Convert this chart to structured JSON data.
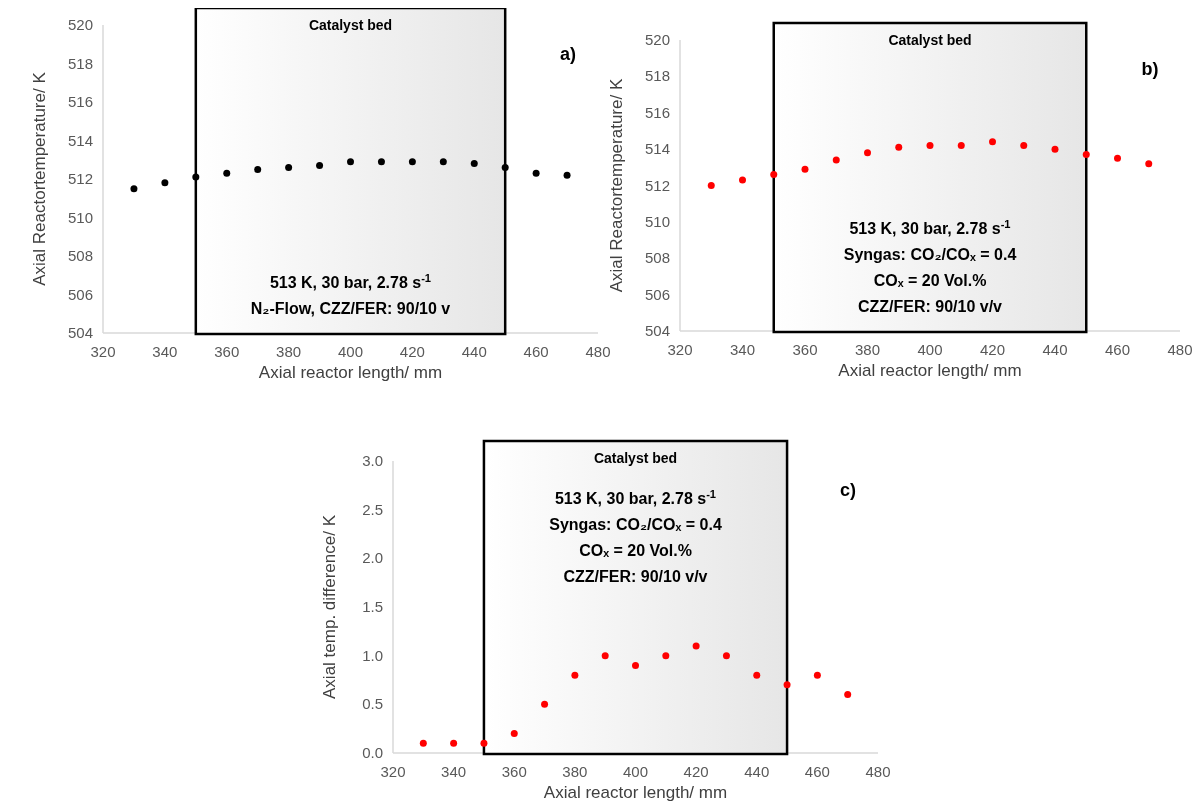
{
  "chart_data": [
    {
      "type": "scatter",
      "xlabel": "Axial reactor length/ mm",
      "ylabel": "Axial Reactortemperature/ K",
      "x": [
        330,
        340,
        350,
        360,
        370,
        380,
        390,
        400,
        410,
        420,
        430,
        440,
        450,
        460,
        470
      ],
      "series": [
        {
          "color": "#000000",
          "values": [
            511.5,
            511.8,
            512.1,
            512.3,
            512.5,
            512.6,
            512.7,
            512.9,
            512.9,
            512.9,
            512.9,
            512.8,
            512.6,
            512.3,
            512.2
          ]
        }
      ],
      "xlim": [
        320,
        480
      ],
      "xticks": [
        320,
        340,
        360,
        380,
        400,
        420,
        440,
        460,
        480
      ],
      "ylim": [
        504,
        520
      ],
      "yticks": [
        504,
        506,
        508,
        510,
        512,
        514,
        516,
        518,
        520
      ],
      "marker": "circle",
      "grid": false,
      "bands": [
        {
          "axis": "x",
          "from": 350,
          "to": 450,
          "label": "Catalyst bed"
        }
      ],
      "annotations": [
        "a)",
        "513 K, 30 bar, 2.78 s$^{-1}$",
        "N₂-Flow, CZZ/FER: 90/10 v"
      ]
    },
    {
      "type": "scatter",
      "xlabel": "Axial reactor length/ mm",
      "ylabel": "Axial Reactortemperature/ K",
      "x": [
        330,
        340,
        350,
        360,
        370,
        380,
        390,
        400,
        410,
        420,
        430,
        440,
        450,
        460,
        470
      ],
      "series": [
        {
          "color": "#ff0000",
          "values": [
            512.0,
            512.3,
            512.6,
            512.9,
            513.4,
            513.8,
            514.1,
            514.2,
            514.2,
            514.4,
            514.2,
            514.0,
            513.7,
            513.5,
            513.2
          ]
        }
      ],
      "xlim": [
        320,
        480
      ],
      "xticks": [
        320,
        340,
        360,
        380,
        400,
        420,
        440,
        460,
        480
      ],
      "ylim": [
        504,
        520
      ],
      "yticks": [
        504,
        506,
        508,
        510,
        512,
        514,
        516,
        518,
        520
      ],
      "marker": "circle",
      "grid": false,
      "bands": [
        {
          "axis": "x",
          "from": 350,
          "to": 450,
          "label": "Catalyst bed"
        }
      ],
      "annotations": [
        "b)",
        "513 K, 30 bar, 2.78 s$^{-1}$",
        "Syngas: CO₂/COₓ = 0.4",
        "COₓ = 20 Vol.%",
        "CZZ/FER: 90/10 v/v"
      ]
    },
    {
      "type": "scatter",
      "xlabel": "Axial reactor length/ mm",
      "ylabel": "Axial temp. difference/ K",
      "x": [
        330,
        340,
        350,
        360,
        370,
        380,
        390,
        400,
        410,
        420,
        430,
        440,
        450,
        460,
        470
      ],
      "series": [
        {
          "color": "#ff0000",
          "values": [
            0.1,
            0.1,
            0.1,
            0.2,
            0.5,
            0.8,
            1.0,
            0.9,
            1.0,
            1.1,
            1.0,
            0.8,
            0.7,
            0.8,
            0.6
          ]
        }
      ],
      "xlim": [
        320,
        480
      ],
      "xticks": [
        320,
        340,
        360,
        380,
        400,
        420,
        440,
        460,
        480
      ],
      "ylim": [
        0,
        3
      ],
      "yticks": [
        {
          "value": 0,
          "label": "0.0"
        },
        0.5,
        {
          "value": 1,
          "label": "1.0"
        },
        1.5,
        {
          "value": 2,
          "label": "2.0"
        },
        2.5,
        {
          "value": 3,
          "label": "3.0"
        }
      ],
      "marker": "circle",
      "grid": false,
      "bands": [
        {
          "axis": "x",
          "from": 350,
          "to": 450,
          "label": "Catalyst bed"
        }
      ],
      "annotations": [
        "c)",
        "513 K, 30 bar, 2.78 s$^{-1}$",
        "Syngas: CO₂/COₓ = 0.4",
        "COₓ = 20 Vol.%",
        "CZZ/FER: 90/10 v/v"
      ]
    }
  ]
}
